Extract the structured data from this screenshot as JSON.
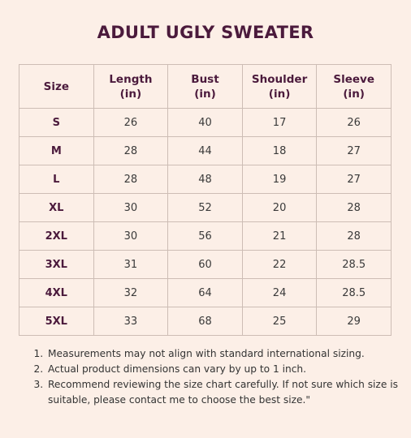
{
  "header": {
    "title": "ADULT UGLY SWEATER"
  },
  "table": {
    "columns": [
      "Size",
      "Length (in)",
      "Bust (in)",
      "Shoulder (in)",
      "Sleeve (in)"
    ],
    "rows": [
      [
        "S",
        "26",
        "40",
        "17",
        "26"
      ],
      [
        "M",
        "28",
        "44",
        "18",
        "27"
      ],
      [
        "L",
        "28",
        "48",
        "19",
        "27"
      ],
      [
        "XL",
        "30",
        "52",
        "20",
        "28"
      ],
      [
        "2XL",
        "30",
        "56",
        "21",
        "28"
      ],
      [
        "3XL",
        "31",
        "60",
        "22",
        "28.5"
      ],
      [
        "4XL",
        "32",
        "64",
        "24",
        "28.5"
      ],
      [
        "5XL",
        "33",
        "68",
        "25",
        "29"
      ]
    ]
  },
  "notes": [
    "Measurements may not align with standard international sizing.",
    "Actual product dimensions can vary by up to 1 inch.",
    "Recommend reviewing the size chart carefully. If not sure which size is suitable, please contact me to choose the best size.\""
  ]
}
